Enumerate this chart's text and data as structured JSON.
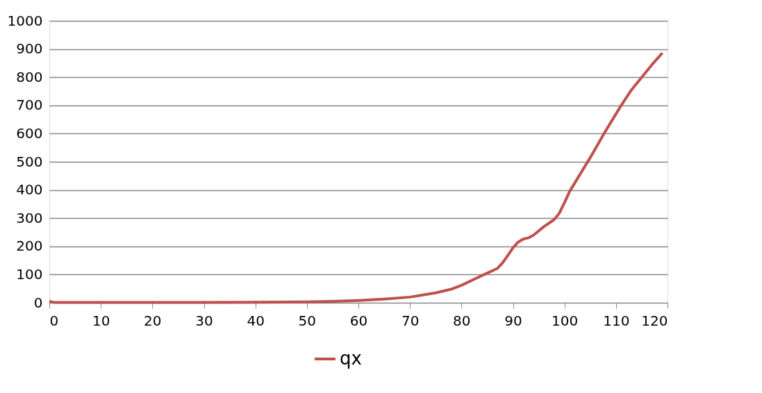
{
  "chart_data": {
    "type": "line",
    "x": [
      0,
      1,
      5,
      10,
      20,
      30,
      40,
      50,
      55,
      60,
      65,
      70,
      75,
      78,
      80,
      83,
      85,
      87,
      88,
      89,
      90,
      91,
      92,
      93,
      94,
      95,
      96,
      98,
      99,
      100,
      101,
      103,
      105,
      108,
      111,
      113,
      115,
      117,
      119
    ],
    "series": [
      {
        "name": "qx",
        "color": "#c0504d",
        "values": [
          5,
          1,
          1,
          1,
          1,
          1,
          2,
          3,
          5,
          8,
          13,
          20,
          35,
          48,
          62,
          88,
          105,
          122,
          142,
          168,
          195,
          215,
          226,
          230,
          240,
          255,
          270,
          295,
          318,
          355,
          395,
          455,
          515,
          610,
          700,
          755,
          800,
          845,
          886
        ]
      }
    ],
    "xlim": [
      0,
      120
    ],
    "xticks": [
      0,
      10,
      20,
      30,
      40,
      50,
      60,
      70,
      80,
      90,
      100,
      110,
      120
    ],
    "ylim": [
      0,
      1000
    ],
    "yticks": [
      0,
      100,
      200,
      300,
      400,
      500,
      600,
      700,
      800,
      900,
      1000
    ],
    "grid": "y",
    "legend": "bottom",
    "marker": "none",
    "line_style": "solid"
  }
}
